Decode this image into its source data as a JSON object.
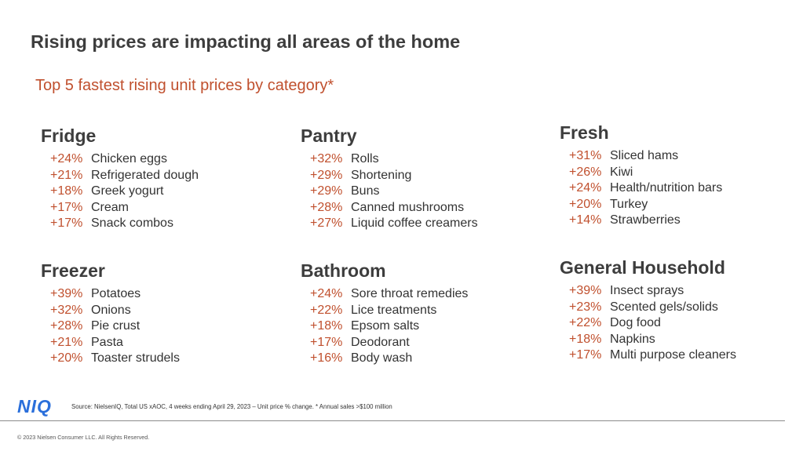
{
  "title": "Rising prices are impacting all areas of the home",
  "subtitle": "Top 5 fastest rising unit prices by category*",
  "categories": [
    {
      "name": "Fridge",
      "items": [
        {
          "pct": "+24%",
          "label": "Chicken eggs"
        },
        {
          "pct": "+21%",
          "label": "Refrigerated dough"
        },
        {
          "pct": "+18%",
          "label": "Greek yogurt"
        },
        {
          "pct": "+17%",
          "label": "Cream"
        },
        {
          "pct": "+17%",
          "label": "Snack combos"
        }
      ]
    },
    {
      "name": "Pantry",
      "items": [
        {
          "pct": "+32%",
          "label": "Rolls"
        },
        {
          "pct": "+29%",
          "label": "Shortening"
        },
        {
          "pct": "+29%",
          "label": "Buns"
        },
        {
          "pct": "+28%",
          "label": "Canned mushrooms"
        },
        {
          "pct": "+27%",
          "label": "Liquid coffee creamers"
        }
      ]
    },
    {
      "name": "Fresh",
      "items": [
        {
          "pct": "+31%",
          "label": "Sliced hams"
        },
        {
          "pct": "+26%",
          "label": "Kiwi"
        },
        {
          "pct": "+24%",
          "label": "Health/nutrition bars"
        },
        {
          "pct": "+20%",
          "label": "Turkey"
        },
        {
          "pct": "+14%",
          "label": "Strawberries"
        }
      ]
    },
    {
      "name": "Freezer",
      "items": [
        {
          "pct": "+39%",
          "label": "Potatoes"
        },
        {
          "pct": "+32%",
          "label": "Onions"
        },
        {
          "pct": "+28%",
          "label": "Pie crust"
        },
        {
          "pct": "+21%",
          "label": "Pasta"
        },
        {
          "pct": "+20%",
          "label": "Toaster strudels"
        }
      ]
    },
    {
      "name": "Bathroom",
      "items": [
        {
          "pct": "+24%",
          "label": "Sore throat remedies"
        },
        {
          "pct": "+22%",
          "label": "Lice treatments"
        },
        {
          "pct": "+18%",
          "label": "Epsom salts"
        },
        {
          "pct": "+17%",
          "label": "Deodorant"
        },
        {
          "pct": "+16%",
          "label": "Body wash"
        }
      ]
    },
    {
      "name": "General Household",
      "items": [
        {
          "pct": "+39%",
          "label": "Insect sprays"
        },
        {
          "pct": "+23%",
          "label": "Scented gels/solids"
        },
        {
          "pct": "+22%",
          "label": "Dog food"
        },
        {
          "pct": "+18%",
          "label": "Napkins"
        },
        {
          "pct": "+17%",
          "label": "Multi purpose cleaners"
        }
      ]
    }
  ],
  "footer": {
    "logo": "NIQ",
    "source": "Source: NielsenIQ, Total US xAOC,  4 weeks ending April 29,  2023  – Unit price % change. * Annual sales >$100 million",
    "copyright": "© 2023 Nielsen Consumer LLC. All Rights Reserved."
  },
  "colors": {
    "accent": "#c0502e",
    "heading": "#3d3d3d",
    "logo": "#2a6fdb"
  }
}
